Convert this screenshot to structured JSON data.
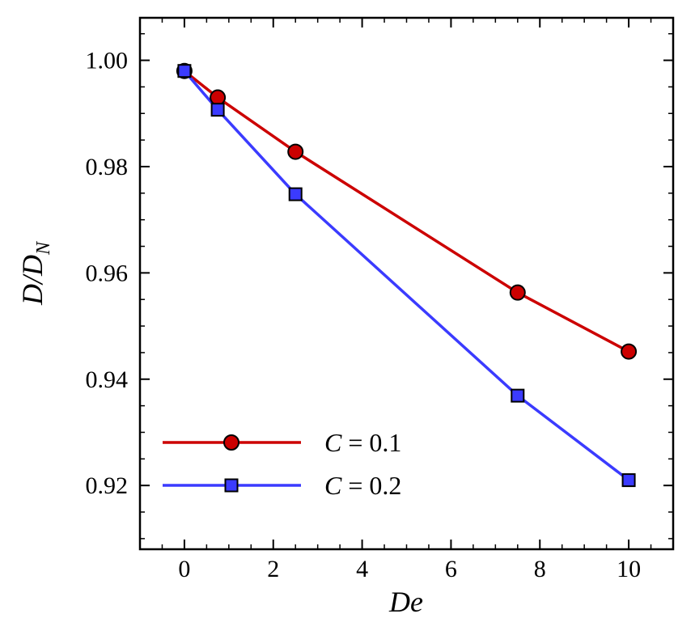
{
  "chart_data": {
    "type": "line",
    "xlabel": "De",
    "ylabel": {
      "main": "D/D",
      "subscript": "N"
    },
    "xlim": [
      -1.0,
      11.0
    ],
    "ylim": [
      0.908,
      1.008
    ],
    "x_ticks": [
      0,
      2,
      4,
      6,
      8,
      10
    ],
    "x_tick_labels": [
      "0",
      "2",
      "4",
      "6",
      "8",
      "10"
    ],
    "y_ticks": [
      0.92,
      0.94,
      0.96,
      0.98,
      1.0
    ],
    "y_tick_labels": [
      "0.92",
      "0.94",
      "0.96",
      "0.98",
      "1.00"
    ],
    "x_minor_step": 0.5,
    "y_minor_step": 0.005,
    "grid": false,
    "legend_position": "bottom-left",
    "series": [
      {
        "name_var": "C",
        "name_rest": " = 0.1",
        "marker": "circle",
        "line_color": "#cc0000",
        "marker_fill": "#cc0000",
        "x": [
          0,
          0.75,
          2.5,
          7.5,
          10
        ],
        "y": [
          0.998,
          0.993,
          0.9828,
          0.9563,
          0.9452
        ]
      },
      {
        "name_var": "C",
        "name_rest": " = 0.2",
        "marker": "square",
        "line_color": "#3b3bff",
        "marker_fill": "#3b3bff",
        "x": [
          0,
          0.75,
          2.5,
          7.5,
          10
        ],
        "y": [
          0.998,
          0.9907,
          0.9748,
          0.9369,
          0.921
        ]
      }
    ]
  }
}
